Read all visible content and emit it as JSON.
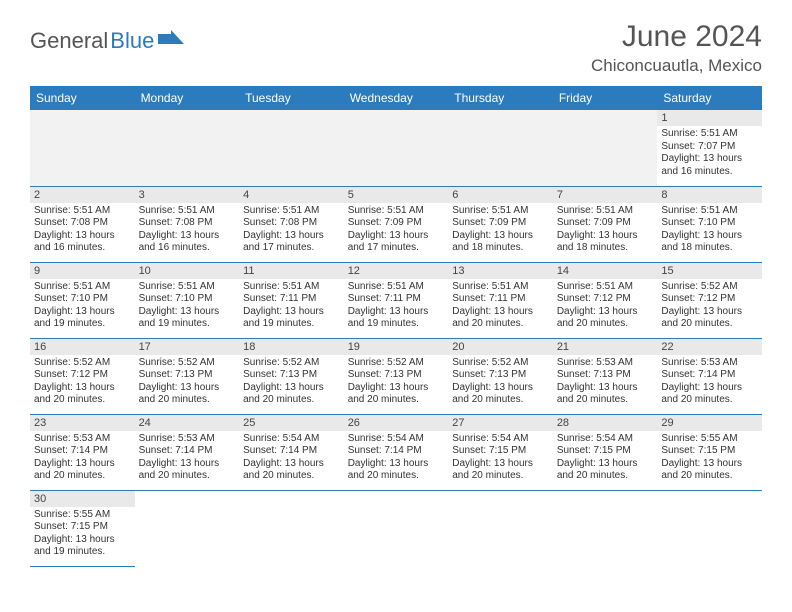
{
  "brand": {
    "part1": "General",
    "part2": "Blue"
  },
  "title": {
    "month": "June 2024",
    "location": "Chiconcuautla, Mexico"
  },
  "colors": {
    "header_bg": "#2b7bbf",
    "header_fg": "#ffffff",
    "daynum_bg": "#e9e9e9",
    "row_divider": "#2b7bbf",
    "page_bg": "#ffffff",
    "text": "#333333",
    "logo_gray": "#555555",
    "logo_blue": "#2b7bbf"
  },
  "calendar": {
    "type": "table",
    "columns": [
      "Sunday",
      "Monday",
      "Tuesday",
      "Wednesday",
      "Thursday",
      "Friday",
      "Saturday"
    ],
    "weeks": [
      [
        null,
        null,
        null,
        null,
        null,
        null,
        {
          "n": "1",
          "sr": "5:51 AM",
          "ss": "7:07 PM",
          "dl": "13 hours and 16 minutes."
        }
      ],
      [
        {
          "n": "2",
          "sr": "5:51 AM",
          "ss": "7:08 PM",
          "dl": "13 hours and 16 minutes."
        },
        {
          "n": "3",
          "sr": "5:51 AM",
          "ss": "7:08 PM",
          "dl": "13 hours and 16 minutes."
        },
        {
          "n": "4",
          "sr": "5:51 AM",
          "ss": "7:08 PM",
          "dl": "13 hours and 17 minutes."
        },
        {
          "n": "5",
          "sr": "5:51 AM",
          "ss": "7:09 PM",
          "dl": "13 hours and 17 minutes."
        },
        {
          "n": "6",
          "sr": "5:51 AM",
          "ss": "7:09 PM",
          "dl": "13 hours and 18 minutes."
        },
        {
          "n": "7",
          "sr": "5:51 AM",
          "ss": "7:09 PM",
          "dl": "13 hours and 18 minutes."
        },
        {
          "n": "8",
          "sr": "5:51 AM",
          "ss": "7:10 PM",
          "dl": "13 hours and 18 minutes."
        }
      ],
      [
        {
          "n": "9",
          "sr": "5:51 AM",
          "ss": "7:10 PM",
          "dl": "13 hours and 19 minutes."
        },
        {
          "n": "10",
          "sr": "5:51 AM",
          "ss": "7:10 PM",
          "dl": "13 hours and 19 minutes."
        },
        {
          "n": "11",
          "sr": "5:51 AM",
          "ss": "7:11 PM",
          "dl": "13 hours and 19 minutes."
        },
        {
          "n": "12",
          "sr": "5:51 AM",
          "ss": "7:11 PM",
          "dl": "13 hours and 19 minutes."
        },
        {
          "n": "13",
          "sr": "5:51 AM",
          "ss": "7:11 PM",
          "dl": "13 hours and 20 minutes."
        },
        {
          "n": "14",
          "sr": "5:51 AM",
          "ss": "7:12 PM",
          "dl": "13 hours and 20 minutes."
        },
        {
          "n": "15",
          "sr": "5:52 AM",
          "ss": "7:12 PM",
          "dl": "13 hours and 20 minutes."
        }
      ],
      [
        {
          "n": "16",
          "sr": "5:52 AM",
          "ss": "7:12 PM",
          "dl": "13 hours and 20 minutes."
        },
        {
          "n": "17",
          "sr": "5:52 AM",
          "ss": "7:13 PM",
          "dl": "13 hours and 20 minutes."
        },
        {
          "n": "18",
          "sr": "5:52 AM",
          "ss": "7:13 PM",
          "dl": "13 hours and 20 minutes."
        },
        {
          "n": "19",
          "sr": "5:52 AM",
          "ss": "7:13 PM",
          "dl": "13 hours and 20 minutes."
        },
        {
          "n": "20",
          "sr": "5:52 AM",
          "ss": "7:13 PM",
          "dl": "13 hours and 20 minutes."
        },
        {
          "n": "21",
          "sr": "5:53 AM",
          "ss": "7:13 PM",
          "dl": "13 hours and 20 minutes."
        },
        {
          "n": "22",
          "sr": "5:53 AM",
          "ss": "7:14 PM",
          "dl": "13 hours and 20 minutes."
        }
      ],
      [
        {
          "n": "23",
          "sr": "5:53 AM",
          "ss": "7:14 PM",
          "dl": "13 hours and 20 minutes."
        },
        {
          "n": "24",
          "sr": "5:53 AM",
          "ss": "7:14 PM",
          "dl": "13 hours and 20 minutes."
        },
        {
          "n": "25",
          "sr": "5:54 AM",
          "ss": "7:14 PM",
          "dl": "13 hours and 20 minutes."
        },
        {
          "n": "26",
          "sr": "5:54 AM",
          "ss": "7:14 PM",
          "dl": "13 hours and 20 minutes."
        },
        {
          "n": "27",
          "sr": "5:54 AM",
          "ss": "7:15 PM",
          "dl": "13 hours and 20 minutes."
        },
        {
          "n": "28",
          "sr": "5:54 AM",
          "ss": "7:15 PM",
          "dl": "13 hours and 20 minutes."
        },
        {
          "n": "29",
          "sr": "5:55 AM",
          "ss": "7:15 PM",
          "dl": "13 hours and 20 minutes."
        }
      ],
      [
        {
          "n": "30",
          "sr": "5:55 AM",
          "ss": "7:15 PM",
          "dl": "13 hours and 19 minutes."
        },
        null,
        null,
        null,
        null,
        null,
        null
      ]
    ],
    "labels": {
      "sunrise": "Sunrise:",
      "sunset": "Sunset:",
      "daylight": "Daylight:"
    }
  }
}
